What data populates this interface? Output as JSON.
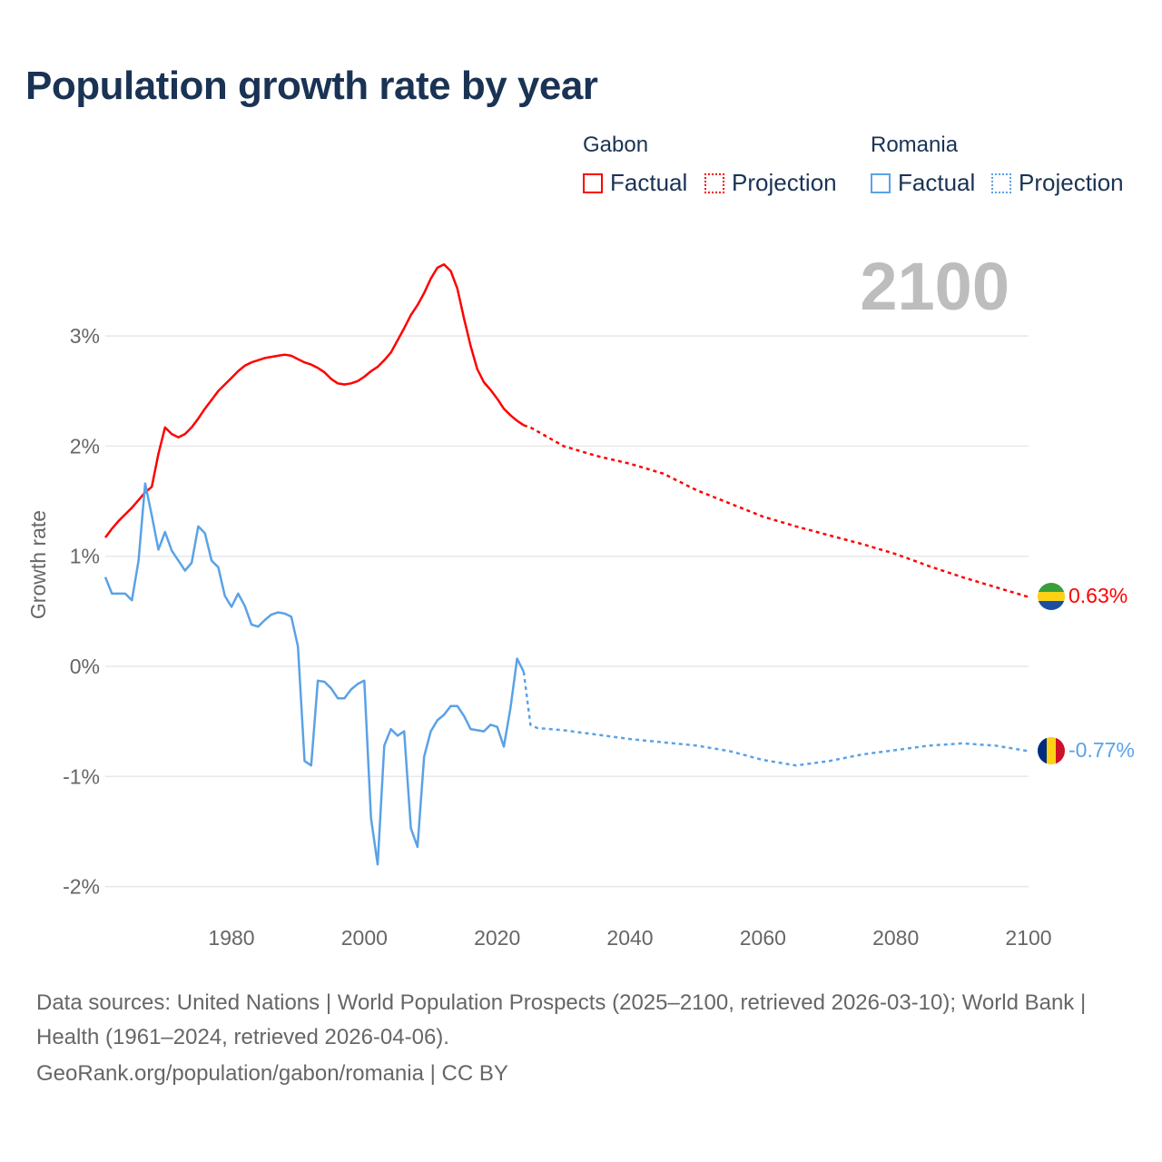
{
  "title": "Population growth rate by year",
  "legend": {
    "groups": [
      {
        "country": "Gabon",
        "factual": "Factual",
        "projection": "Projection",
        "color": "#ff0000"
      },
      {
        "country": "Romania",
        "factual": "Factual",
        "projection": "Projection",
        "color": "#5aa2e6"
      }
    ]
  },
  "year_display": "2100",
  "end_labels": {
    "gabon": "0.63%",
    "romania": "-0.77%"
  },
  "footer": {
    "sources": "Data sources: United Nations | World Population Prospects (2025–2100, retrieved 2026-03-10); World Bank | Health (1961–2024, retrieved 2026-04-06).",
    "link": "GeoRank.org/population/gabon/romania | CC BY"
  },
  "chart_data": {
    "type": "line",
    "title": "Population growth rate by year",
    "xlabel": "",
    "ylabel": "Growth rate",
    "xlim": [
      1961,
      2100
    ],
    "ylim": [
      -2.2,
      3.9
    ],
    "x_ticks": [
      1980,
      2000,
      2020,
      2040,
      2060,
      2080,
      2100
    ],
    "x_tick_labels": [
      "1980",
      "2000",
      "2020",
      "2040",
      "2060",
      "2080",
      "2100"
    ],
    "y_ticks": [
      -2,
      -1,
      0,
      1,
      2,
      3
    ],
    "y_tick_labels": [
      "-2%",
      "-1%",
      "0%",
      "1%",
      "2%",
      "3%"
    ],
    "grid": true,
    "legend_position": "top-right",
    "series": [
      {
        "name": "Gabon Factual",
        "style": "solid",
        "color": "#ff0000",
        "x": [
          1961,
          1962,
          1963,
          1964,
          1965,
          1966,
          1967,
          1968,
          1969,
          1970,
          1971,
          1972,
          1973,
          1974,
          1975,
          1976,
          1977,
          1978,
          1979,
          1980,
          1981,
          1982,
          1983,
          1984,
          1985,
          1986,
          1987,
          1988,
          1989,
          1990,
          1991,
          1992,
          1993,
          1994,
          1995,
          1996,
          1997,
          1998,
          1999,
          2000,
          2001,
          2002,
          2003,
          2004,
          2005,
          2006,
          2007,
          2008,
          2009,
          2010,
          2011,
          2012,
          2013,
          2014,
          2015,
          2016,
          2017,
          2018,
          2019,
          2020,
          2021,
          2022,
          2023,
          2024
        ],
        "y": [
          1.17,
          1.25,
          1.32,
          1.38,
          1.44,
          1.51,
          1.58,
          1.63,
          1.93,
          2.17,
          2.11,
          2.08,
          2.11,
          2.17,
          2.25,
          2.34,
          2.42,
          2.5,
          2.56,
          2.62,
          2.68,
          2.73,
          2.76,
          2.78,
          2.8,
          2.81,
          2.82,
          2.83,
          2.82,
          2.79,
          2.76,
          2.74,
          2.71,
          2.67,
          2.61,
          2.57,
          2.56,
          2.57,
          2.59,
          2.63,
          2.68,
          2.72,
          2.78,
          2.85,
          2.96,
          3.07,
          3.19,
          3.28,
          3.39,
          3.52,
          3.62,
          3.65,
          3.59,
          3.43,
          3.16,
          2.91,
          2.7,
          2.58,
          2.51,
          2.43,
          2.34,
          2.28,
          2.23,
          2.19
        ]
      },
      {
        "name": "Gabon Projection",
        "style": "dotted",
        "color": "#ff0000",
        "x": [
          2024,
          2025,
          2030,
          2035,
          2040,
          2045,
          2050,
          2055,
          2060,
          2065,
          2070,
          2075,
          2080,
          2085,
          2090,
          2095,
          2100
        ],
        "y": [
          2.19,
          2.17,
          2.0,
          1.91,
          1.84,
          1.75,
          1.6,
          1.48,
          1.36,
          1.27,
          1.19,
          1.11,
          1.02,
          0.91,
          0.81,
          0.72,
          0.63
        ]
      },
      {
        "name": "Romania Factual",
        "style": "solid",
        "color": "#5aa2e6",
        "x": [
          1961,
          1962,
          1963,
          1964,
          1965,
          1966,
          1967,
          1968,
          1969,
          1970,
          1971,
          1972,
          1973,
          1974,
          1975,
          1976,
          1977,
          1978,
          1979,
          1980,
          1981,
          1982,
          1983,
          1984,
          1985,
          1986,
          1987,
          1988,
          1989,
          1990,
          1991,
          1992,
          1993,
          1994,
          1995,
          1996,
          1997,
          1998,
          1999,
          2000,
          2001,
          2002,
          2003,
          2004,
          2005,
          2006,
          2007,
          2008,
          2009,
          2010,
          2011,
          2012,
          2013,
          2014,
          2015,
          2016,
          2017,
          2018,
          2019,
          2020,
          2021,
          2022,
          2023,
          2024
        ],
        "y": [
          0.81,
          0.66,
          0.66,
          0.66,
          0.6,
          0.96,
          1.66,
          1.37,
          1.06,
          1.22,
          1.05,
          0.96,
          0.87,
          0.94,
          1.27,
          1.21,
          0.96,
          0.9,
          0.64,
          0.54,
          0.66,
          0.55,
          0.38,
          0.36,
          0.42,
          0.47,
          0.49,
          0.48,
          0.45,
          0.18,
          -0.86,
          -0.9,
          -0.13,
          -0.14,
          -0.2,
          -0.29,
          -0.29,
          -0.21,
          -0.16,
          -0.13,
          -1.38,
          -1.8,
          -0.72,
          -0.57,
          -0.63,
          -0.59,
          -1.47,
          -1.64,
          -0.82,
          -0.59,
          -0.49,
          -0.44,
          -0.36,
          -0.36,
          -0.45,
          -0.57,
          -0.58,
          -0.59,
          -0.53,
          -0.55,
          -0.73,
          -0.38,
          0.07,
          -0.05
        ]
      },
      {
        "name": "Romania Projection",
        "style": "dotted",
        "color": "#5aa2e6",
        "x": [
          2024,
          2025,
          2026,
          2030,
          2035,
          2040,
          2045,
          2050,
          2055,
          2060,
          2065,
          2070,
          2075,
          2080,
          2085,
          2090,
          2095,
          2100
        ],
        "y": [
          -0.05,
          -0.53,
          -0.56,
          -0.58,
          -0.62,
          -0.66,
          -0.69,
          -0.72,
          -0.77,
          -0.85,
          -0.9,
          -0.86,
          -0.8,
          -0.76,
          -0.72,
          -0.7,
          -0.72,
          -0.77
        ]
      }
    ]
  }
}
